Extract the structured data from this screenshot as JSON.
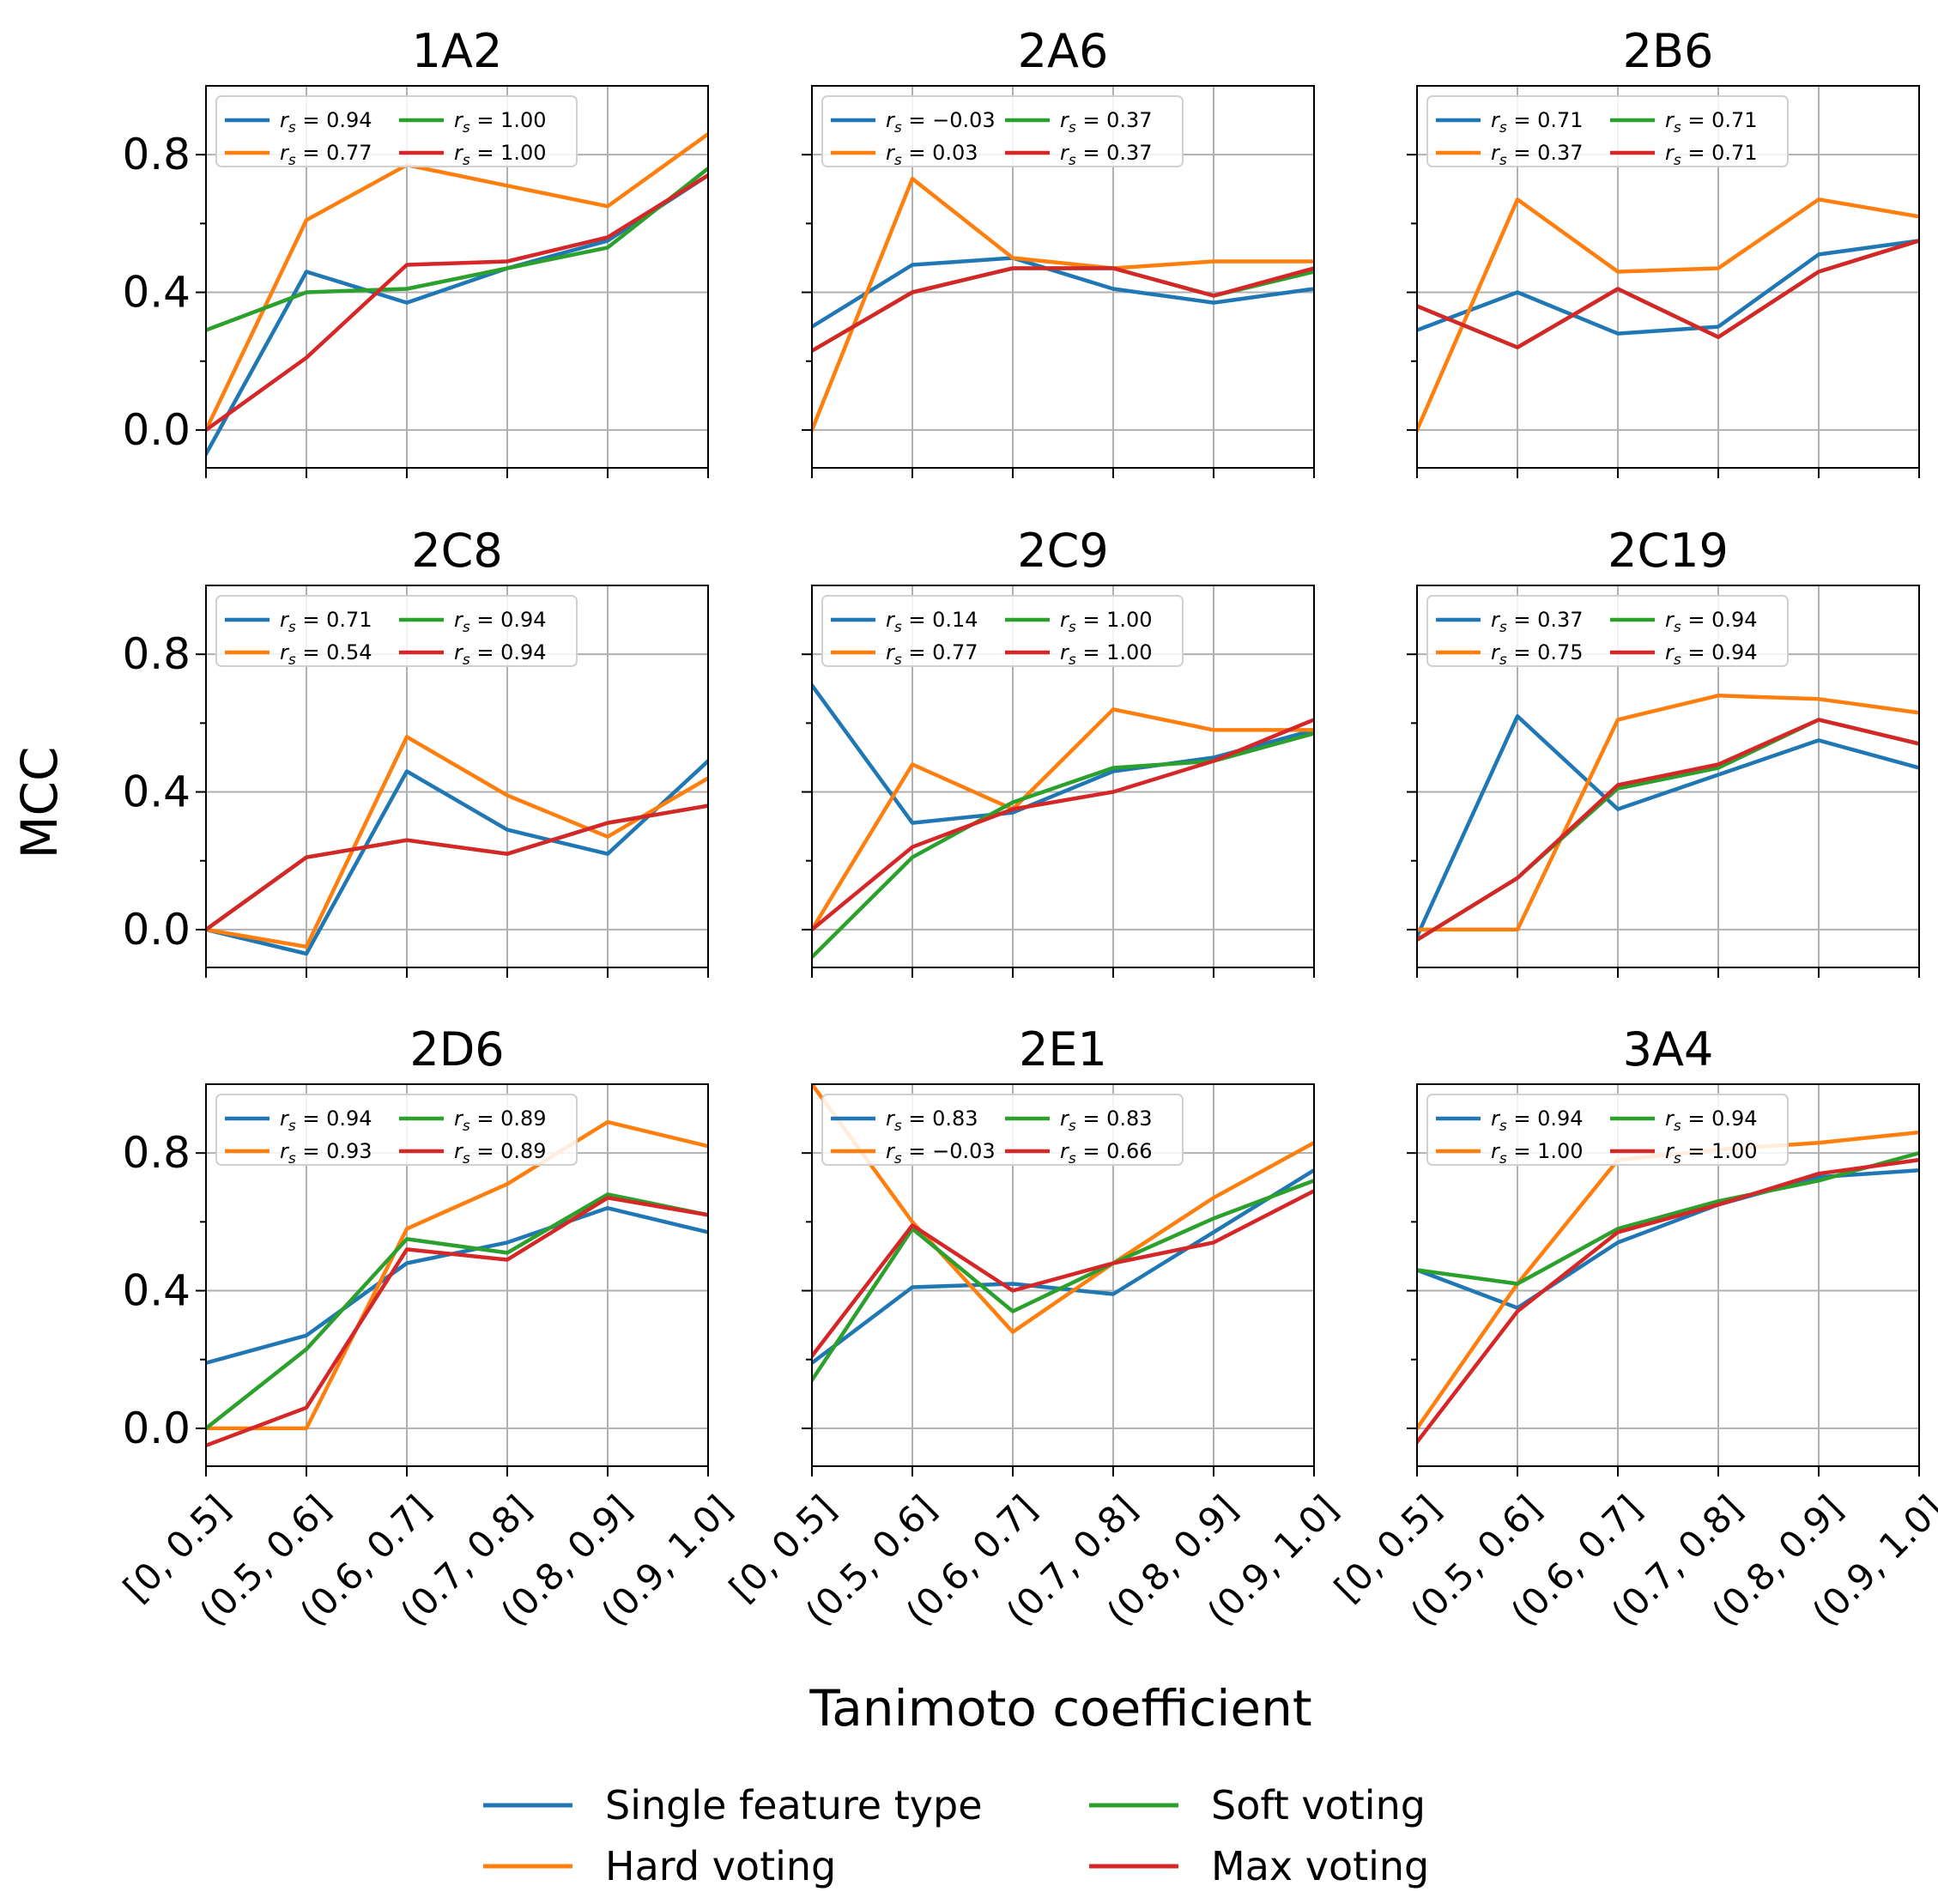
{
  "chart_data": {
    "type": "line",
    "grid": true,
    "shared_xlabel": "Tanimoto coefficient",
    "shared_ylabel": "MCC",
    "ylim": [
      -0.11,
      1.0
    ],
    "yticks": [
      0.0,
      0.4,
      0.8
    ],
    "yticks_minor": [
      0.2,
      0.6
    ],
    "categories": [
      "[0, 0.5]",
      "(0.5, 0.6]",
      "(0.6, 0.7]",
      "(0.7, 0.8]",
      "(0.8, 0.9]",
      "(0.9, 1.0]"
    ],
    "legend": {
      "placement": "bottom-center",
      "entries": [
        {
          "key": "single",
          "name": "Single feature type",
          "color": "#1f77b4"
        },
        {
          "key": "hard",
          "name": "Hard voting",
          "color": "#ff7f0e"
        },
        {
          "key": "soft",
          "name": "Soft voting",
          "color": "#2ca02c"
        },
        {
          "key": "max",
          "name": "Max voting",
          "color": "#d62728"
        }
      ]
    },
    "panels": [
      {
        "title": "1A2",
        "rs": {
          "single": "= 0.94",
          "hard": "= 0.77",
          "soft": "= 1.00",
          "max": "= 1.00"
        },
        "series": [
          {
            "key": "single",
            "values": [
              -0.07,
              0.46,
              0.37,
              0.47,
              0.55,
              0.74
            ]
          },
          {
            "key": "hard",
            "values": [
              0.0,
              0.61,
              0.77,
              0.71,
              0.65,
              0.86
            ]
          },
          {
            "key": "soft",
            "values": [
              0.29,
              0.4,
              0.41,
              0.47,
              0.53,
              0.76
            ]
          },
          {
            "key": "max",
            "values": [
              0.0,
              0.21,
              0.48,
              0.49,
              0.56,
              0.74
            ]
          }
        ]
      },
      {
        "title": "2A6",
        "rs": {
          "single": "= −0.03",
          "hard": "= 0.03",
          "soft": "= 0.37",
          "max": "= 0.37"
        },
        "series": [
          {
            "key": "single",
            "values": [
              0.3,
              0.48,
              0.5,
              0.41,
              0.37,
              0.41
            ]
          },
          {
            "key": "hard",
            "values": [
              0.0,
              0.73,
              0.5,
              0.47,
              0.49,
              0.49
            ]
          },
          {
            "key": "soft",
            "values": [
              0.23,
              0.4,
              0.47,
              0.47,
              0.39,
              0.46
            ]
          },
          {
            "key": "max",
            "values": [
              0.23,
              0.4,
              0.47,
              0.47,
              0.39,
              0.47
            ]
          }
        ]
      },
      {
        "title": "2B6",
        "rs": {
          "single": "= 0.71",
          "hard": "= 0.37",
          "soft": "= 0.71",
          "max": "= 0.71"
        },
        "series": [
          {
            "key": "single",
            "values": [
              0.29,
              0.4,
              0.28,
              0.3,
              0.51,
              0.55
            ]
          },
          {
            "key": "hard",
            "values": [
              0.0,
              0.67,
              0.46,
              0.47,
              0.67,
              0.62
            ]
          },
          {
            "key": "soft",
            "values": [
              0.36,
              0.24,
              0.41,
              0.27,
              0.46,
              0.55
            ]
          },
          {
            "key": "max",
            "values": [
              0.36,
              0.24,
              0.41,
              0.27,
              0.46,
              0.55
            ]
          }
        ]
      },
      {
        "title": "2C8",
        "rs": {
          "single": "= 0.71",
          "hard": "= 0.54",
          "soft": "= 0.94",
          "max": "= 0.94"
        },
        "series": [
          {
            "key": "single",
            "values": [
              0.0,
              -0.07,
              0.46,
              0.29,
              0.22,
              0.49
            ]
          },
          {
            "key": "hard",
            "values": [
              0.0,
              -0.05,
              0.56,
              0.39,
              0.27,
              0.44
            ]
          },
          {
            "key": "soft",
            "values": [
              0.0,
              0.21,
              0.26,
              0.22,
              0.31,
              0.36
            ]
          },
          {
            "key": "max",
            "values": [
              0.0,
              0.21,
              0.26,
              0.22,
              0.31,
              0.36
            ]
          }
        ]
      },
      {
        "title": "2C9",
        "rs": {
          "single": "= 0.14",
          "hard": "= 0.77",
          "soft": "= 1.00",
          "max": "= 1.00"
        },
        "series": [
          {
            "key": "single",
            "values": [
              0.71,
              0.31,
              0.34,
              0.46,
              0.5,
              0.58
            ]
          },
          {
            "key": "hard",
            "values": [
              0.0,
              0.48,
              0.35,
              0.64,
              0.58,
              0.58
            ]
          },
          {
            "key": "soft",
            "values": [
              -0.08,
              0.21,
              0.37,
              0.47,
              0.49,
              0.57
            ]
          },
          {
            "key": "max",
            "values": [
              0.0,
              0.24,
              0.35,
              0.4,
              0.49,
              0.61
            ]
          }
        ]
      },
      {
        "title": "2C19",
        "rs": {
          "single": "= 0.37",
          "hard": "= 0.75",
          "soft": "= 0.94",
          "max": "= 0.94"
        },
        "series": [
          {
            "key": "single",
            "values": [
              -0.02,
              0.62,
              0.35,
              0.45,
              0.55,
              0.47
            ]
          },
          {
            "key": "hard",
            "values": [
              0.0,
              0.0,
              0.61,
              0.68,
              0.67,
              0.63
            ]
          },
          {
            "key": "soft",
            "values": [
              -0.03,
              0.15,
              0.41,
              0.47,
              0.61,
              0.54
            ]
          },
          {
            "key": "max",
            "values": [
              -0.03,
              0.15,
              0.42,
              0.48,
              0.61,
              0.54
            ]
          }
        ]
      },
      {
        "title": "2D6",
        "rs": {
          "single": "= 0.94",
          "hard": "= 0.93",
          "soft": "= 0.89",
          "max": "= 0.89"
        },
        "series": [
          {
            "key": "single",
            "values": [
              0.19,
              0.27,
              0.48,
              0.54,
              0.64,
              0.57
            ]
          },
          {
            "key": "hard",
            "values": [
              0.0,
              0.0,
              0.58,
              0.71,
              0.89,
              0.82
            ]
          },
          {
            "key": "soft",
            "values": [
              0.0,
              0.23,
              0.55,
              0.51,
              0.68,
              0.62
            ]
          },
          {
            "key": "max",
            "values": [
              -0.05,
              0.06,
              0.52,
              0.49,
              0.67,
              0.62
            ]
          }
        ]
      },
      {
        "title": "2E1",
        "rs": {
          "single": "= 0.83",
          "hard": "= −0.03",
          "soft": "= 0.83",
          "max": "= 0.66"
        },
        "series": [
          {
            "key": "single",
            "values": [
              0.19,
              0.41,
              0.42,
              0.39,
              0.57,
              0.75
            ]
          },
          {
            "key": "hard",
            "values": [
              1.0,
              0.6,
              0.28,
              0.48,
              0.67,
              0.83
            ]
          },
          {
            "key": "soft",
            "values": [
              0.14,
              0.58,
              0.34,
              0.48,
              0.61,
              0.72
            ]
          },
          {
            "key": "max",
            "values": [
              0.21,
              0.59,
              0.4,
              0.48,
              0.54,
              0.69
            ]
          }
        ]
      },
      {
        "title": "3A4",
        "rs": {
          "single": "= 0.94",
          "hard": "= 1.00",
          "soft": "= 0.94",
          "max": "= 1.00"
        },
        "series": [
          {
            "key": "single",
            "values": [
              0.46,
              0.35,
              0.54,
              0.65,
              0.73,
              0.75
            ]
          },
          {
            "key": "hard",
            "values": [
              0.0,
              0.42,
              0.78,
              0.81,
              0.83,
              0.86
            ]
          },
          {
            "key": "soft",
            "values": [
              0.46,
              0.42,
              0.58,
              0.66,
              0.72,
              0.8
            ]
          },
          {
            "key": "max",
            "values": [
              -0.04,
              0.34,
              0.57,
              0.65,
              0.74,
              0.78
            ]
          }
        ]
      }
    ]
  }
}
